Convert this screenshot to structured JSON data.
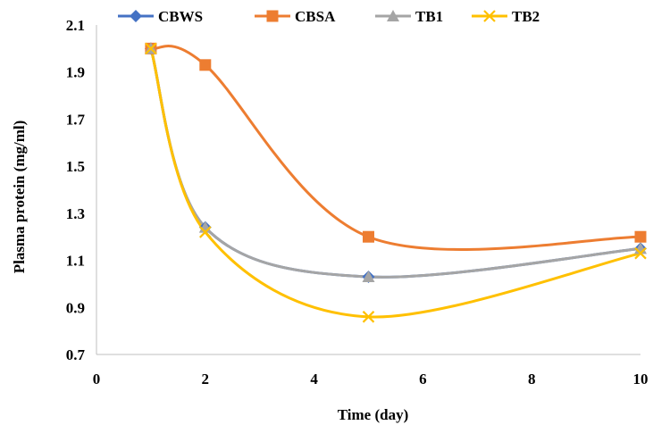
{
  "chart_data": {
    "type": "line",
    "xlabel": "Time (day)",
    "ylabel": "Plasma protein (mg/ml)",
    "xlim": [
      0,
      10
    ],
    "ylim": [
      0.7,
      2.1
    ],
    "x_ticks": [
      "0",
      "2",
      "4",
      "6",
      "8",
      "10"
    ],
    "y_ticks": [
      "0.7",
      "0.9",
      "1.1",
      "1.3",
      "1.5",
      "1.7",
      "1.9",
      "2.1"
    ],
    "grid": false,
    "legend_position": "top",
    "smooth": true,
    "series": [
      {
        "name": "CBWS",
        "color": "#4472C4",
        "marker": "diamond",
        "x": [
          1,
          2,
          5,
          10
        ],
        "y": [
          2.0,
          1.24,
          1.03,
          1.15
        ]
      },
      {
        "name": "CBSA",
        "color": "#ED7D31",
        "marker": "square",
        "x": [
          1,
          2,
          5,
          10
        ],
        "y": [
          2.0,
          1.93,
          1.2,
          1.2
        ]
      },
      {
        "name": "TB1",
        "color": "#A5A5A5",
        "marker": "triangle",
        "x": [
          1,
          2,
          5,
          10
        ],
        "y": [
          2.0,
          1.24,
          1.03,
          1.15
        ]
      },
      {
        "name": "TB2",
        "color": "#FFC000",
        "marker": "x",
        "x": [
          1,
          2,
          5,
          10
        ],
        "y": [
          2.0,
          1.22,
          0.86,
          1.13
        ]
      }
    ]
  }
}
